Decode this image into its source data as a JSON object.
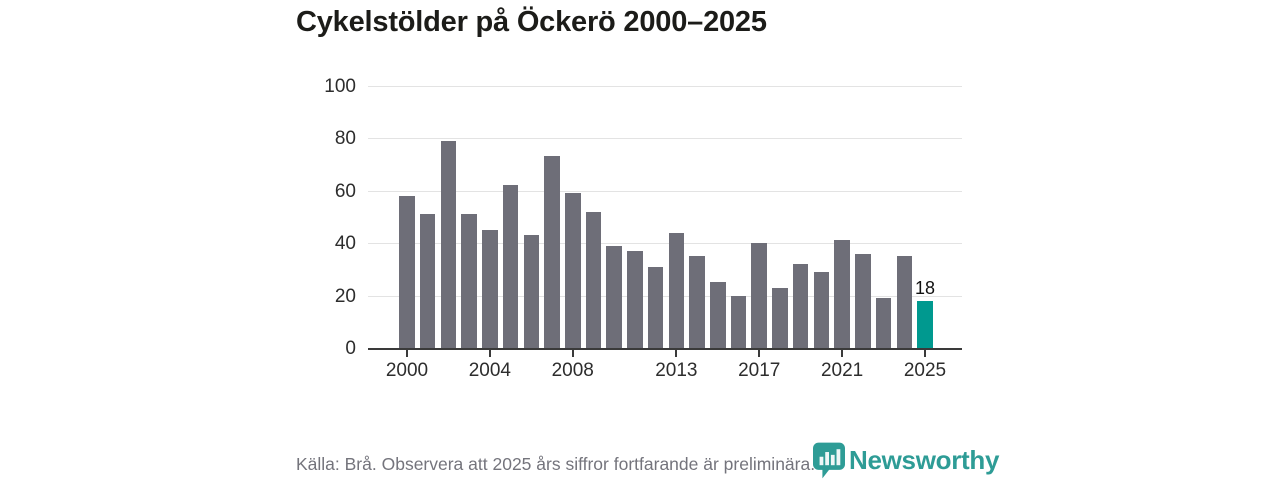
{
  "title": "Cykelstölder på Öckerö 2000–2025",
  "chart_data": {
    "type": "bar",
    "categories": [
      2000,
      2001,
      2002,
      2003,
      2004,
      2005,
      2006,
      2007,
      2008,
      2009,
      2010,
      2011,
      2012,
      2013,
      2014,
      2015,
      2016,
      2017,
      2018,
      2019,
      2020,
      2021,
      2022,
      2023,
      2024,
      2025
    ],
    "values": [
      58,
      51,
      79,
      51,
      45,
      62,
      43,
      73,
      59,
      52,
      39,
      37,
      31,
      44,
      35,
      25,
      20,
      40,
      23,
      32,
      29,
      41,
      36,
      19,
      35,
      18
    ],
    "title": "Cykelstölder på Öckerö 2000–2025",
    "xlabel": "",
    "ylabel": "",
    "ylim": [
      0,
      100
    ],
    "yticks": [
      0,
      20,
      40,
      60,
      80,
      100
    ],
    "xticks": [
      2000,
      2004,
      2008,
      2013,
      2017,
      2021,
      2025
    ],
    "grid": "horizontal",
    "legend": "none",
    "highlight_index": 25,
    "highlight_label": "18",
    "colors": {
      "bar": "#6e6e78",
      "highlight": "#00998f",
      "grid": "#e3e3e3",
      "axis": "#3a3a3a",
      "tick_label": "#2d2d2d",
      "value_label": "#111111"
    }
  },
  "footer": {
    "source_text": "Källa: Brå. Observera att 2025 års siffror fortfarande är preliminära.",
    "brand": {
      "name": "Newsworthy",
      "color": "#2e9c96",
      "icon": "newsworthy-chart-bubble-icon"
    }
  }
}
